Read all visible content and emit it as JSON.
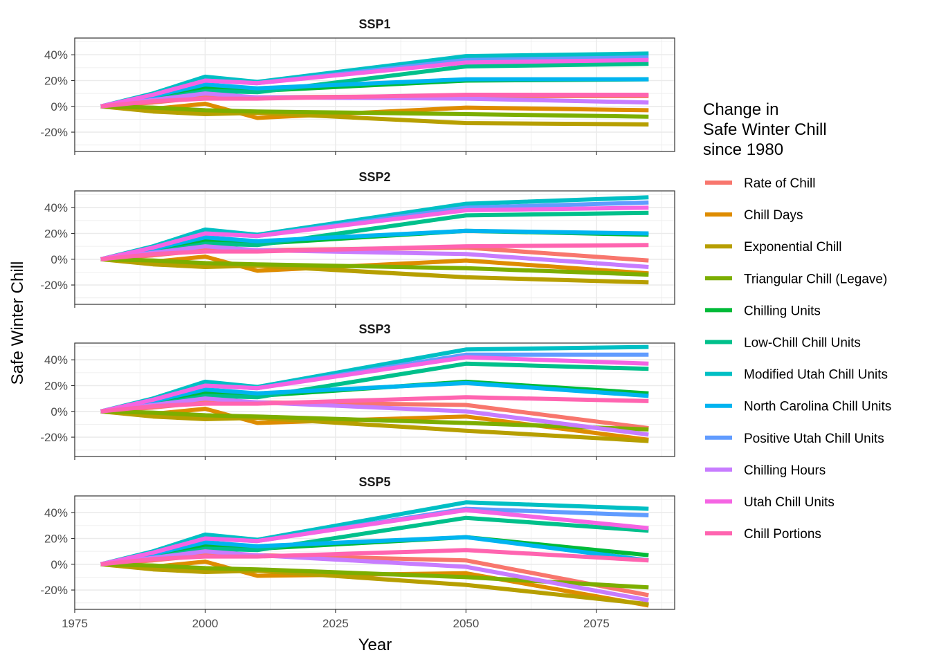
{
  "colors": {
    "Rate of Chill": "#F8766D",
    "Chill Days": "#DE8C00",
    "Exponential Chill": "#B79F00",
    "Triangular Chill (Legave)": "#7CAE00",
    "Chilling Units": "#00BA38",
    "Low-Chill Chill Units": "#00C08B",
    "Modified Utah Chill Units": "#00BFC4",
    "North Carolina Chill Units": "#00B4F0",
    "Positive Utah Chill Units": "#619CFF",
    "Chilling Hours": "#C77CFF",
    "Utah Chill Units": "#F564E3",
    "Chill Portions": "#FF64B0"
  },
  "legend": {
    "title_lines": [
      "Change in",
      "Safe Winter Chill",
      "since 1980"
    ],
    "position": "right"
  },
  "chart_data": {
    "type": "line",
    "xlabel": "Year",
    "ylabel": "Safe Winter Chill",
    "x": [
      1980,
      1990,
      2000,
      2010,
      2050,
      2085
    ],
    "xlim": [
      1975,
      2090
    ],
    "xticks": [
      1975,
      2000,
      2025,
      2050,
      2075
    ],
    "ylim": [
      -35,
      53
    ],
    "yticks": [
      -20,
      0,
      20,
      40
    ],
    "ytick_labels": [
      "-20%",
      "0%",
      "20%",
      "40%"
    ],
    "grid": true,
    "panels": [
      {
        "title": "SSP1",
        "series": [
          {
            "name": "Rate of Chill",
            "values": [
              0,
              3,
              7,
              7,
              8,
              8
            ]
          },
          {
            "name": "Chill Days",
            "values": [
              0,
              -2,
              2,
              -9,
              -1,
              -3
            ]
          },
          {
            "name": "Exponential Chill",
            "values": [
              0,
              -4,
              -6,
              -5,
              -13,
              -14
            ]
          },
          {
            "name": "Triangular Chill (Legave)",
            "values": [
              0,
              -1,
              -3,
              -4,
              -6,
              -8
            ]
          },
          {
            "name": "Chilling Units",
            "values": [
              0,
              6,
              14,
              12,
              20,
              21
            ]
          },
          {
            "name": "Low-Chill Chill Units",
            "values": [
              0,
              5,
              12,
              11,
              31,
              33
            ]
          },
          {
            "name": "Modified Utah Chill Units",
            "values": [
              0,
              10,
              23,
              19,
              39,
              41
            ]
          },
          {
            "name": "North Carolina Chill Units",
            "values": [
              0,
              8,
              17,
              14,
              21,
              21
            ]
          },
          {
            "name": "Positive Utah Chill Units",
            "values": [
              0,
              9,
              20,
              18,
              36,
              38
            ]
          },
          {
            "name": "Chilling Hours",
            "values": [
              0,
              5,
              10,
              7,
              6,
              3
            ]
          },
          {
            "name": "Utah Chill Units",
            "values": [
              0,
              9,
              20,
              18,
              34,
              36
            ]
          },
          {
            "name": "Chill Portions",
            "values": [
              0,
              4,
              6,
              6,
              9,
              9
            ]
          }
        ]
      },
      {
        "title": "SSP2",
        "series": [
          {
            "name": "Rate of Chill",
            "values": [
              0,
              3,
              7,
              7,
              9,
              -1
            ]
          },
          {
            "name": "Chill Days",
            "values": [
              0,
              -2,
              2,
              -9,
              -1,
              -11
            ]
          },
          {
            "name": "Exponential Chill",
            "values": [
              0,
              -4,
              -6,
              -5,
              -14,
              -18
            ]
          },
          {
            "name": "Triangular Chill (Legave)",
            "values": [
              0,
              -1,
              -3,
              -4,
              -7,
              -12
            ]
          },
          {
            "name": "Chilling Units",
            "values": [
              0,
              6,
              14,
              12,
              22,
              19
            ]
          },
          {
            "name": "Low-Chill Chill Units",
            "values": [
              0,
              5,
              12,
              11,
              34,
              36
            ]
          },
          {
            "name": "Modified Utah Chill Units",
            "values": [
              0,
              10,
              23,
              19,
              43,
              48
            ]
          },
          {
            "name": "North Carolina Chill Units",
            "values": [
              0,
              8,
              17,
              14,
              22,
              20
            ]
          },
          {
            "name": "Positive Utah Chill Units",
            "values": [
              0,
              9,
              20,
              18,
              40,
              44
            ]
          },
          {
            "name": "Chilling Hours",
            "values": [
              0,
              5,
              10,
              7,
              4,
              -6
            ]
          },
          {
            "name": "Utah Chill Units",
            "values": [
              0,
              9,
              20,
              18,
              38,
              40
            ]
          },
          {
            "name": "Chill Portions",
            "values": [
              0,
              4,
              6,
              6,
              10,
              11
            ]
          }
        ]
      },
      {
        "title": "SSP3",
        "series": [
          {
            "name": "Rate of Chill",
            "values": [
              0,
              3,
              7,
              7,
              5,
              -13
            ]
          },
          {
            "name": "Chill Days",
            "values": [
              0,
              -2,
              2,
              -9,
              -4,
              -22
            ]
          },
          {
            "name": "Exponential Chill",
            "values": [
              0,
              -4,
              -6,
              -5,
              -15,
              -23
            ]
          },
          {
            "name": "Triangular Chill (Legave)",
            "values": [
              0,
              -1,
              -3,
              -4,
              -9,
              -14
            ]
          },
          {
            "name": "Chilling Units",
            "values": [
              0,
              6,
              14,
              12,
              23,
              14
            ]
          },
          {
            "name": "Low-Chill Chill Units",
            "values": [
              0,
              5,
              12,
              11,
              37,
              33
            ]
          },
          {
            "name": "Modified Utah Chill Units",
            "values": [
              0,
              10,
              23,
              19,
              48,
              50
            ]
          },
          {
            "name": "North Carolina Chill Units",
            "values": [
              0,
              8,
              17,
              14,
              22,
              12
            ]
          },
          {
            "name": "Positive Utah Chill Units",
            "values": [
              0,
              9,
              20,
              18,
              44,
              44
            ]
          },
          {
            "name": "Chilling Hours",
            "values": [
              0,
              5,
              10,
              7,
              0,
              -18
            ]
          },
          {
            "name": "Utah Chill Units",
            "values": [
              0,
              9,
              20,
              18,
              42,
              37
            ]
          },
          {
            "name": "Chill Portions",
            "values": [
              0,
              4,
              6,
              6,
              11,
              8
            ]
          }
        ]
      },
      {
        "title": "SSP5",
        "series": [
          {
            "name": "Rate of Chill",
            "values": [
              0,
              3,
              7,
              7,
              3,
              -24
            ]
          },
          {
            "name": "Chill Days",
            "values": [
              0,
              -2,
              2,
              -9,
              -7,
              -32
            ]
          },
          {
            "name": "Exponential Chill",
            "values": [
              0,
              -4,
              -6,
              -5,
              -16,
              -31
            ]
          },
          {
            "name": "Triangular Chill (Legave)",
            "values": [
              0,
              -1,
              -3,
              -4,
              -10,
              -18
            ]
          },
          {
            "name": "Chilling Units",
            "values": [
              0,
              6,
              14,
              12,
              21,
              7
            ]
          },
          {
            "name": "Low-Chill Chill Units",
            "values": [
              0,
              5,
              12,
              11,
              36,
              26
            ]
          },
          {
            "name": "Modified Utah Chill Units",
            "values": [
              0,
              10,
              23,
              19,
              48,
              43
            ]
          },
          {
            "name": "North Carolina Chill Units",
            "values": [
              0,
              8,
              17,
              14,
              21,
              3
            ]
          },
          {
            "name": "Positive Utah Chill Units",
            "values": [
              0,
              9,
              20,
              18,
              43,
              38
            ]
          },
          {
            "name": "Chilling Hours",
            "values": [
              0,
              5,
              10,
              7,
              -2,
              -28
            ]
          },
          {
            "name": "Utah Chill Units",
            "values": [
              0,
              9,
              20,
              18,
              42,
              28
            ]
          },
          {
            "name": "Chill Portions",
            "values": [
              0,
              4,
              6,
              6,
              11,
              3
            ]
          }
        ]
      }
    ]
  }
}
